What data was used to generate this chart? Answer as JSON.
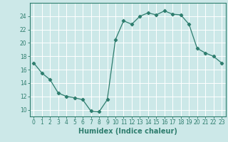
{
  "x": [
    0,
    1,
    2,
    3,
    4,
    5,
    6,
    7,
    8,
    9,
    10,
    11,
    12,
    13,
    14,
    15,
    16,
    17,
    18,
    19,
    20,
    21,
    22,
    23
  ],
  "y": [
    17.0,
    15.5,
    14.5,
    12.5,
    12.0,
    11.8,
    11.5,
    9.8,
    9.7,
    11.5,
    20.5,
    23.3,
    22.8,
    24.0,
    24.5,
    24.2,
    24.8,
    24.3,
    24.2,
    22.8,
    19.2,
    18.5,
    18.0,
    17.0
  ],
  "xlabel": "Humidex (Indice chaleur)",
  "ylim": [
    9,
    26
  ],
  "xlim": [
    -0.5,
    23.5
  ],
  "yticks": [
    10,
    12,
    14,
    16,
    18,
    20,
    22,
    24
  ],
  "xticks": [
    0,
    1,
    2,
    3,
    4,
    5,
    6,
    7,
    8,
    9,
    10,
    11,
    12,
    13,
    14,
    15,
    16,
    17,
    18,
    19,
    20,
    21,
    22,
    23
  ],
  "line_color": "#2e7d6e",
  "marker": "D",
  "marker_size": 2.2,
  "bg_color": "#cce8e8",
  "grid_color": "#ffffff",
  "tick_color": "#2e7d6e",
  "label_color": "#2e7d6e",
  "xlabel_fontsize": 7,
  "tick_fontsize": 5.5
}
